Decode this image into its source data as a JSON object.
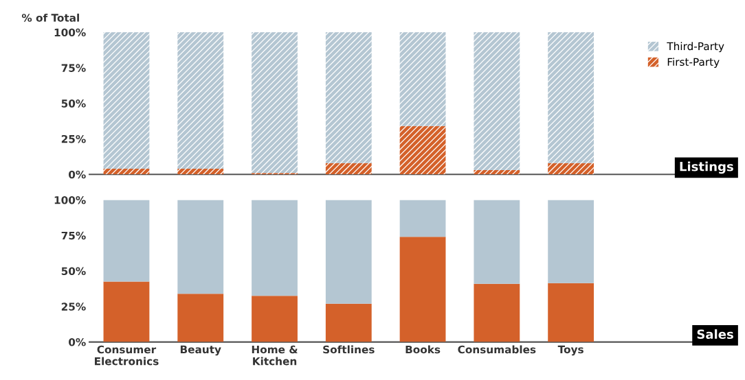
{
  "chart_data": [
    {
      "type": "bar",
      "stacked": true,
      "ylabel": "% of Total",
      "categories": [
        null,
        null,
        null,
        null,
        null,
        null,
        null
      ],
      "series": [
        {
          "name": "First-Party",
          "color": "#d4612a",
          "values": [
            4,
            4,
            1,
            8,
            34,
            3,
            8
          ]
        },
        {
          "name": "Third-Party",
          "color": "#b4c6d2",
          "values": [
            96,
            96,
            99,
            92,
            66,
            97,
            92
          ]
        }
      ],
      "ylim": [
        0,
        100
      ],
      "yticks": [
        {
          "value": 0,
          "label": "0%"
        },
        {
          "value": 25,
          "label": "25%"
        },
        {
          "value": 50,
          "label": "50%"
        },
        {
          "value": 75,
          "label": "75%"
        },
        {
          "value": 100,
          "label": "100%"
        }
      ],
      "legend": "top right",
      "annotations": [
        "Listings"
      ]
    },
    {
      "type": "bar",
      "stacked": true,
      "categories": [
        "Consumer\nElectronics",
        "Beauty",
        "Home &\nKitchen",
        "Softlines",
        "Books",
        "Consumables",
        "Toys"
      ],
      "series": [
        {
          "color": "#d4612a",
          "values": [
            42.5,
            34,
            32.5,
            27,
            74,
            41,
            41.5
          ]
        },
        {
          "color": "#b4c6d2",
          "values": [
            57.5,
            66,
            67.5,
            73,
            26,
            59,
            58.5
          ]
        }
      ],
      "ylim": [
        0,
        100
      ],
      "yticks": [
        {
          "value": 0,
          "label": "0%"
        },
        {
          "value": 25,
          "label": "25%"
        },
        {
          "value": 50,
          "label": "50%"
        },
        {
          "value": 75,
          "label": "75%"
        },
        {
          "value": 100,
          "label": "100%"
        }
      ],
      "annotations": [
        "Sales"
      ]
    }
  ]
}
